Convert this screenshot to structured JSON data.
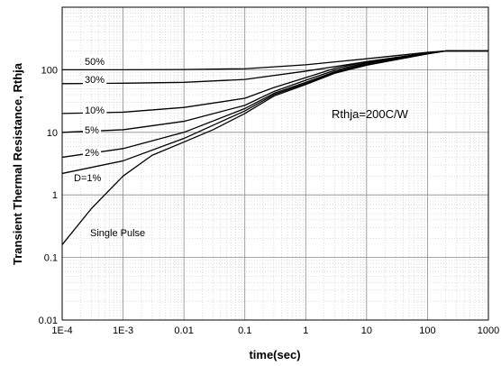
{
  "chart_data": {
    "type": "line",
    "title": "",
    "xlabel": "time(sec)",
    "ylabel": "Transient Thermal Resistance, Rthja",
    "x_scale": "log",
    "y_scale": "log",
    "xlim": [
      0.0001,
      1000
    ],
    "ylim": [
      0.01,
      1000
    ],
    "x_ticks": [
      {
        "value": 0.0001,
        "label": "1E-4"
      },
      {
        "value": 0.001,
        "label": "1E-3"
      },
      {
        "value": 0.01,
        "label": "0.01"
      },
      {
        "value": 0.1,
        "label": "0.1"
      },
      {
        "value": 1,
        "label": "1"
      },
      {
        "value": 10,
        "label": "10"
      },
      {
        "value": 100,
        "label": "100"
      },
      {
        "value": 1000,
        "label": "1000"
      }
    ],
    "y_ticks": [
      {
        "value": 0.01,
        "label": "0.01"
      },
      {
        "value": 0.1,
        "label": "0.1"
      },
      {
        "value": 1,
        "label": "1"
      },
      {
        "value": 10,
        "label": "10"
      },
      {
        "value": 100,
        "label": "100"
      }
    ],
    "grid": true,
    "annotation": "Rthja=200C/W",
    "series": [
      {
        "name": "50%",
        "x": [
          0.0001,
          0.001,
          0.01,
          0.1,
          1,
          10,
          100,
          200,
          1000
        ],
        "y": [
          100,
          100,
          101,
          104,
          120,
          150,
          190,
          200,
          200
        ]
      },
      {
        "name": "30%",
        "x": [
          0.0001,
          0.001,
          0.01,
          0.1,
          1,
          10,
          100,
          200,
          1000
        ],
        "y": [
          60,
          61,
          63,
          70,
          95,
          135,
          185,
          200,
          200
        ]
      },
      {
        "name": "10%",
        "x": [
          0.0001,
          0.001,
          0.01,
          0.1,
          0.3,
          1,
          3,
          10,
          100,
          200,
          1000
        ],
        "y": [
          20,
          21,
          25,
          35,
          52,
          75,
          105,
          135,
          185,
          200,
          200
        ]
      },
      {
        "name": "5%",
        "x": [
          0.0001,
          0.001,
          0.01,
          0.1,
          0.3,
          1,
          3,
          10,
          100,
          200,
          1000
        ],
        "y": [
          10,
          11,
          15,
          27,
          45,
          68,
          98,
          130,
          183,
          200,
          200
        ]
      },
      {
        "name": "2%",
        "x": [
          0.0001,
          0.001,
          0.01,
          0.1,
          0.3,
          1,
          3,
          10,
          100,
          200,
          1000
        ],
        "y": [
          4,
          5.5,
          10,
          24,
          42,
          63,
          93,
          125,
          182,
          200,
          200
        ]
      },
      {
        "name": "D=1%",
        "x": [
          0.0001,
          0.001,
          0.01,
          0.1,
          0.3,
          1,
          3,
          10,
          100,
          200,
          1000
        ],
        "y": [
          2.2,
          3.5,
          8,
          22,
          40,
          60,
          90,
          120,
          180,
          200,
          200
        ]
      },
      {
        "name": "Single Pulse",
        "x": [
          0.0001,
          0.0003,
          0.001,
          0.003,
          0.01,
          0.03,
          0.1,
          0.3,
          1,
          3,
          10,
          100,
          200,
          1000
        ],
        "y": [
          0.16,
          0.6,
          2,
          4.3,
          7,
          11,
          20,
          38,
          58,
          88,
          118,
          180,
          200,
          200
        ]
      }
    ],
    "series_labels": [
      "50%",
      "30%",
      "10%",
      "5%",
      "2%",
      "D=1%",
      "Single Pulse"
    ]
  }
}
